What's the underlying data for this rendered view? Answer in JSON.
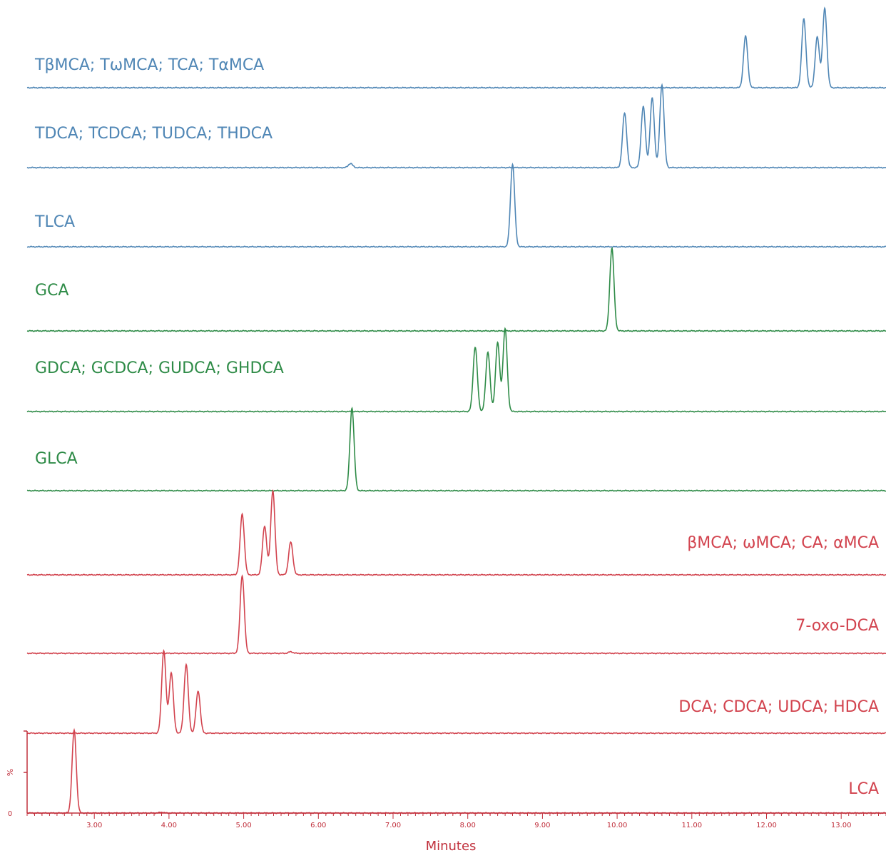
{
  "chart_data": {
    "type": "line",
    "title": "",
    "xlabel": "Minutes",
    "ylabel": "%",
    "xlim": [
      2.1,
      13.6
    ],
    "x_ticks": [
      "3.00",
      "4.00",
      "5.00",
      "6.00",
      "7.00",
      "8.00",
      "9.00",
      "10.00",
      "11.00",
      "12.00",
      "13.00"
    ],
    "y_ticks": [
      "0"
    ],
    "grid": false,
    "legend": "none",
    "colors": {
      "blue": "#4f86b5",
      "green": "#2e8b47",
      "red": "#d2434e",
      "axis": "#c0303c"
    },
    "series": [
      {
        "name": "TβMCA; TωMCA; TCA; TαMCA",
        "color": "blue",
        "label_side": "left",
        "peaks": [
          {
            "x": 11.72,
            "height": 0.65
          },
          {
            "x": 12.5,
            "height": 0.87
          },
          {
            "x": 12.68,
            "height": 0.64
          },
          {
            "x": 12.78,
            "height": 1.0
          }
        ]
      },
      {
        "name": "TDCA; TCDCA; TUDCA; THDCA",
        "color": "blue",
        "label_side": "left",
        "peaks": [
          {
            "x": 6.43,
            "height": 0.05
          },
          {
            "x": 10.1,
            "height": 0.66
          },
          {
            "x": 10.35,
            "height": 0.74
          },
          {
            "x": 10.47,
            "height": 0.84
          },
          {
            "x": 10.6,
            "height": 1.0
          }
        ]
      },
      {
        "name": "TLCA",
        "color": "blue",
        "label_side": "left",
        "peaks": [
          {
            "x": 8.6,
            "height": 1.0
          }
        ]
      },
      {
        "name": "GCA",
        "color": "green",
        "label_side": "left",
        "peaks": [
          {
            "x": 9.93,
            "height": 1.0
          }
        ]
      },
      {
        "name": "GDCA; GCDCA; GUDCA; GHDCA",
        "color": "green",
        "label_side": "left",
        "peaks": [
          {
            "x": 8.1,
            "height": 0.78
          },
          {
            "x": 8.27,
            "height": 0.72
          },
          {
            "x": 8.4,
            "height": 0.83
          },
          {
            "x": 8.5,
            "height": 1.0
          }
        ]
      },
      {
        "name": "GLCA",
        "color": "green",
        "label_side": "left",
        "peaks": [
          {
            "x": 6.45,
            "height": 1.0
          }
        ]
      },
      {
        "name": "βMCA; ωMCA; CA; αMCA",
        "color": "red",
        "label_side": "right",
        "peaks": [
          {
            "x": 4.98,
            "height": 0.72
          },
          {
            "x": 5.28,
            "height": 0.58
          },
          {
            "x": 5.39,
            "height": 1.0
          },
          {
            "x": 5.63,
            "height": 0.39
          }
        ]
      },
      {
        "name": "7-oxo-DCA",
        "color": "red",
        "label_side": "right",
        "peaks": [
          {
            "x": 4.98,
            "height": 1.0
          },
          {
            "x": 5.63,
            "height": 0.02
          }
        ]
      },
      {
        "name": "DCA; CDCA; UDCA; HDCA",
        "color": "red",
        "label_side": "right",
        "peaks": [
          {
            "x": 3.93,
            "height": 1.0
          },
          {
            "x": 4.03,
            "height": 0.73
          },
          {
            "x": 4.23,
            "height": 0.83
          },
          {
            "x": 4.39,
            "height": 0.51
          }
        ]
      },
      {
        "name": "LCA",
        "color": "red",
        "label_side": "right",
        "peaks": [
          {
            "x": 2.73,
            "height": 1.0
          },
          {
            "x": 3.9,
            "height": 0.01
          }
        ]
      }
    ]
  }
}
